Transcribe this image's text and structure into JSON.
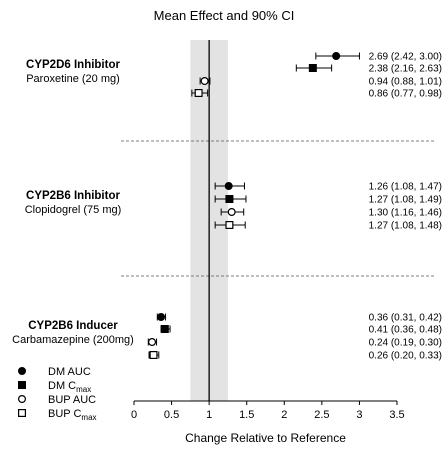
{
  "chart_data": {
    "type": "forest",
    "title": "Mean Effect and 90% CI",
    "xlabel": "Change Relative to Reference",
    "xlim": [
      0,
      3.5
    ],
    "xticks": [
      "0",
      "0.5",
      "1",
      "1.5",
      "2",
      "2.5",
      "3",
      "3.5"
    ],
    "reference_line": 1,
    "shaded_band": [
      0.75,
      1.25
    ],
    "legend": [
      {
        "name": "DM AUC",
        "sub": "",
        "marker": "filled-circle"
      },
      {
        "name": "DM C",
        "sub": "max",
        "marker": "filled-square"
      },
      {
        "name": "BUP AUC",
        "sub": "",
        "marker": "open-circle"
      },
      {
        "name": "BUP C",
        "sub": "max",
        "marker": "open-square"
      }
    ],
    "groups": [
      {
        "title": "CYP2D6 Inhibitor",
        "subtitle": "Paroxetine (20 mg)",
        "rows": [
          {
            "series": "DM AUC",
            "marker": "filled-circle",
            "estimate": 2.69,
            "lower": 2.42,
            "upper": 3.0,
            "label": "2.69 (2.42, 3.00)"
          },
          {
            "series": "DM Cmax",
            "marker": "filled-square",
            "estimate": 2.38,
            "lower": 2.16,
            "upper": 2.63,
            "label": "2.38 (2.16, 2.63)"
          },
          {
            "series": "BUP AUC",
            "marker": "open-circle",
            "estimate": 0.94,
            "lower": 0.88,
            "upper": 1.01,
            "label": "0.94 (0.88, 1.01)"
          },
          {
            "series": "BUP Cmax",
            "marker": "open-square",
            "estimate": 0.86,
            "lower": 0.77,
            "upper": 0.98,
            "label": "0.86 (0.77, 0.98)"
          }
        ]
      },
      {
        "title": "CYP2B6 Inhibitor",
        "subtitle": "Clopidogrel (75 mg)",
        "rows": [
          {
            "series": "DM AUC",
            "marker": "filled-circle",
            "estimate": 1.26,
            "lower": 1.08,
            "upper": 1.47,
            "label": "1.26 (1.08, 1.47)"
          },
          {
            "series": "DM Cmax",
            "marker": "filled-square",
            "estimate": 1.27,
            "lower": 1.08,
            "upper": 1.49,
            "label": "1.27 (1.08, 1.49)"
          },
          {
            "series": "BUP AUC",
            "marker": "open-circle",
            "estimate": 1.3,
            "lower": 1.16,
            "upper": 1.46,
            "label": "1.30 (1.16, 1.46)"
          },
          {
            "series": "BUP Cmax",
            "marker": "open-square",
            "estimate": 1.27,
            "lower": 1.08,
            "upper": 1.48,
            "label": "1.27 (1.08, 1.48)"
          }
        ]
      },
      {
        "title": "CYP2B6 Inducer",
        "subtitle": "Carbamazepine (200mg)",
        "rows": [
          {
            "series": "DM AUC",
            "marker": "filled-circle",
            "estimate": 0.36,
            "lower": 0.31,
            "upper": 0.42,
            "label": "0.36 (0.31, 0.42)"
          },
          {
            "series": "DM Cmax",
            "marker": "filled-square",
            "estimate": 0.41,
            "lower": 0.36,
            "upper": 0.48,
            "label": "0.41 (0.36, 0.48)"
          },
          {
            "series": "BUP AUC",
            "marker": "open-circle",
            "estimate": 0.24,
            "lower": 0.19,
            "upper": 0.3,
            "label": "0.24 (0.19, 0.30)"
          },
          {
            "series": "BUP Cmax",
            "marker": "open-square",
            "estimate": 0.26,
            "lower": 0.2,
            "upper": 0.33,
            "label": "0.26 (0.20, 0.33)"
          }
        ]
      }
    ],
    "colors": {
      "marker": "#000000",
      "band": "#e3e3e3",
      "divider": "#555555",
      "axis": "#000000"
    }
  }
}
